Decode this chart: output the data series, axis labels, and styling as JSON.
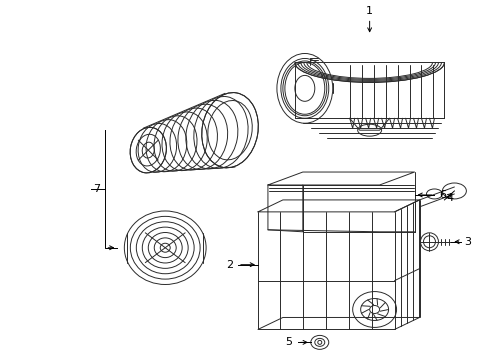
{
  "bg_color": "#ffffff",
  "line_color": "#2a2a2a",
  "text_color": "#000000",
  "fig_width": 4.89,
  "fig_height": 3.6,
  "dpi": 100,
  "lw": 0.7,
  "label_fs": 8.0
}
